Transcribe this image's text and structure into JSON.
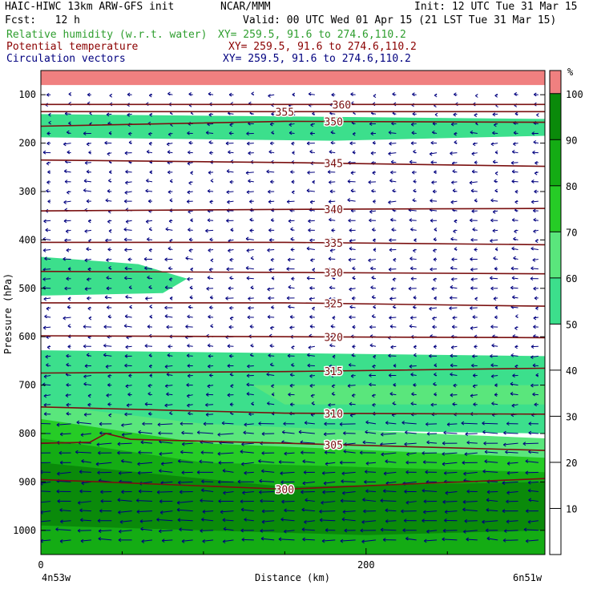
{
  "header": {
    "model": "HAIC-HIWC 13km ARW-GFS init",
    "org": "NCAR/MMM",
    "init": "Init: 12 UTC Tue 31 Mar 15",
    "fcst": "Fcst:   12 h",
    "valid": "Valid: 00 UTC Wed 01 Apr 15 (21 LST Tue 31 Mar 15)",
    "fields": [
      {
        "name": "Relative humidity (w.r.t. water)",
        "xy": "XY= 259.5, 91.6 to 274.6,110.2",
        "color": "#2e9e2e"
      },
      {
        "name": "Potential temperature",
        "xy": "XY= 259.5, 91.6 to 274.6,110.2",
        "color": "#8b0000"
      },
      {
        "name": "Circulation vectors",
        "xy": "XY= 259.5, 91.6 to 274.6,110.2",
        "color": "#00007f"
      }
    ]
  },
  "chart_data": {
    "type": "cross-section (filled contour + line contours + vectors)",
    "ylabel": "Pressure (hPa)",
    "xlabel": "Distance (km)",
    "x_ticks": [
      0,
      200
    ],
    "x_minor_ticks": [
      50,
      100,
      150,
      250
    ],
    "xlim": [
      0,
      310
    ],
    "y_ticks": [
      100,
      200,
      300,
      400,
      500,
      600,
      700,
      800,
      900,
      1000
    ],
    "ylim": [
      1050,
      50
    ],
    "left_endpoint": "4n53w",
    "right_endpoint": "6n51w",
    "colorbar": {
      "unit": "%",
      "levels": [
        10,
        20,
        30,
        40,
        50,
        60,
        70,
        80,
        90,
        100
      ],
      "bands": [
        {
          "from": 50,
          "to": 60,
          "color": "#3cdf8c"
        },
        {
          "from": 60,
          "to": 70,
          "color": "#5ae67c"
        },
        {
          "from": 70,
          "to": 80,
          "color": "#26cc26"
        },
        {
          "from": 80,
          "to": 90,
          "color": "#14ac14"
        },
        {
          "from": 90,
          "to": 100,
          "color": "#0a8a0a"
        },
        {
          "from": 100,
          "to": 105,
          "color": "#f08080"
        }
      ]
    },
    "rh_regions": [
      {
        "rh": 100,
        "poly": [
          [
            0,
            50
          ],
          [
            310,
            50
          ],
          [
            310,
            80
          ],
          [
            0,
            80
          ]
        ]
      },
      {
        "rh": 50,
        "poly": [
          [
            0,
            140
          ],
          [
            310,
            150
          ],
          [
            310,
            185
          ],
          [
            180,
            195
          ],
          [
            0,
            188
          ]
        ]
      },
      {
        "rh": 50,
        "poly": [
          [
            0,
            435
          ],
          [
            60,
            450
          ],
          [
            90,
            480
          ],
          [
            75,
            510
          ],
          [
            0,
            515
          ]
        ]
      },
      {
        "rh": 50,
        "poly": [
          [
            0,
            628
          ],
          [
            310,
            640
          ],
          [
            310,
            800
          ],
          [
            120,
            790
          ],
          [
            0,
            770
          ]
        ]
      },
      {
        "rh": 60,
        "poly": [
          [
            130,
            700
          ],
          [
            310,
            700
          ],
          [
            310,
            740
          ],
          [
            150,
            740
          ]
        ]
      },
      {
        "rh": 60,
        "poly": [
          [
            0,
            740
          ],
          [
            100,
            780
          ],
          [
            310,
            810
          ],
          [
            310,
            1050
          ],
          [
            0,
            1050
          ]
        ]
      },
      {
        "rh": 70,
        "poly": [
          [
            0,
            770
          ],
          [
            100,
            820
          ],
          [
            310,
            850
          ],
          [
            310,
            1050
          ],
          [
            0,
            1050
          ]
        ]
      },
      {
        "rh": 80,
        "poly": [
          [
            0,
            810
          ],
          [
            100,
            860
          ],
          [
            310,
            880
          ],
          [
            310,
            1050
          ],
          [
            0,
            1050
          ]
        ]
      },
      {
        "rh": 90,
        "poly": [
          [
            0,
            860
          ],
          [
            150,
            910
          ],
          [
            310,
            900
          ],
          [
            310,
            1000
          ],
          [
            200,
            1010
          ],
          [
            0,
            990
          ]
        ]
      }
    ],
    "theta_contours": [
      {
        "value": 360,
        "label_x": 185,
        "p": [
          [
            0,
            120
          ],
          [
            310,
            120
          ]
        ]
      },
      {
        "value": 355,
        "label_x": 150,
        "p": [
          [
            0,
            135
          ],
          [
            310,
            135
          ]
        ]
      },
      {
        "value": 350,
        "label_x": 180,
        "p": [
          [
            0,
            165
          ],
          [
            150,
            155
          ],
          [
            310,
            157
          ]
        ]
      },
      {
        "value": 345,
        "label_x": 180,
        "p": [
          [
            0,
            235
          ],
          [
            150,
            240
          ],
          [
            310,
            248
          ]
        ]
      },
      {
        "value": 340,
        "label_x": 180,
        "p": [
          [
            0,
            340
          ],
          [
            150,
            337
          ],
          [
            310,
            335
          ]
        ]
      },
      {
        "value": 335,
        "label_x": 180,
        "p": [
          [
            0,
            405
          ],
          [
            150,
            405
          ],
          [
            310,
            410
          ]
        ]
      },
      {
        "value": 330,
        "label_x": 180,
        "p": [
          [
            0,
            465
          ],
          [
            150,
            467
          ],
          [
            310,
            470
          ]
        ]
      },
      {
        "value": 325,
        "label_x": 180,
        "p": [
          [
            0,
            530
          ],
          [
            150,
            530
          ],
          [
            310,
            537
          ]
        ]
      },
      {
        "value": 320,
        "label_x": 180,
        "p": [
          [
            0,
            598
          ],
          [
            150,
            600
          ],
          [
            310,
            602
          ]
        ]
      },
      {
        "value": 315,
        "label_x": 180,
        "p": [
          [
            0,
            675
          ],
          [
            150,
            672
          ],
          [
            310,
            665
          ]
        ]
      },
      {
        "value": 310,
        "label_x": 180,
        "p": [
          [
            0,
            745
          ],
          [
            150,
            758
          ],
          [
            310,
            760
          ]
        ]
      },
      {
        "value": 305,
        "label_x": 180,
        "p": [
          [
            0,
            820
          ],
          [
            30,
            818
          ],
          [
            40,
            800
          ],
          [
            55,
            812
          ],
          [
            150,
            820
          ],
          [
            310,
            835
          ]
        ]
      },
      {
        "value": 300,
        "label_x": 150,
        "p": [
          [
            0,
            895
          ],
          [
            150,
            915
          ],
          [
            200,
            908
          ],
          [
            310,
            893
          ]
        ]
      }
    ],
    "vector_flow": "predominantly easterly (pointing left) circulation vectors throughout the section"
  }
}
